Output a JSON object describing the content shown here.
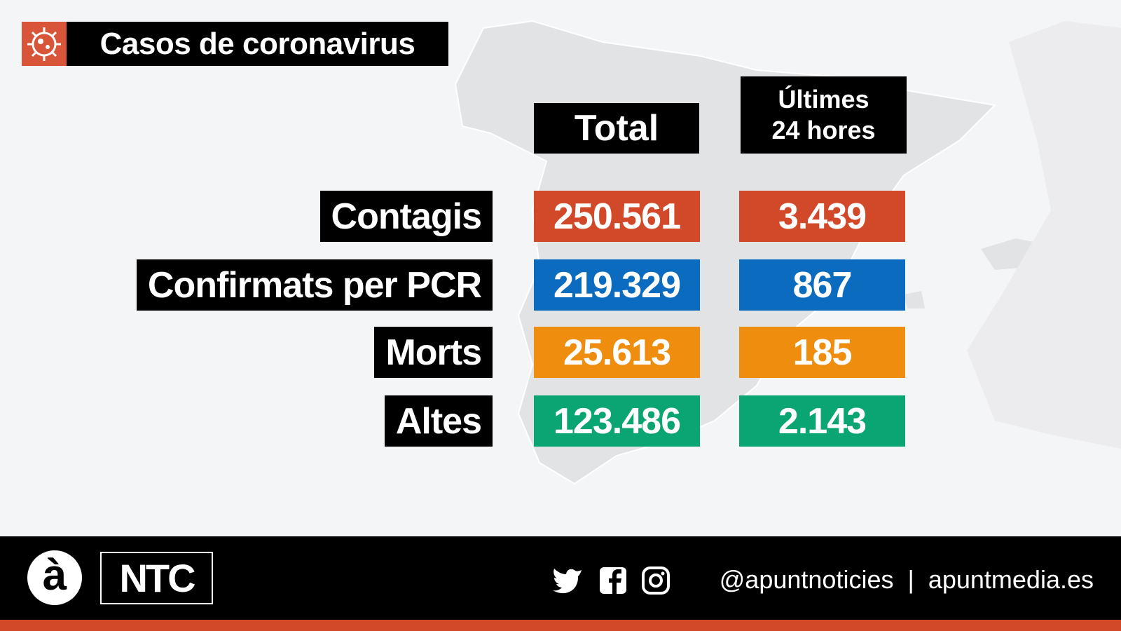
{
  "title": "Casos de coronavirus",
  "headers": {
    "total": "Total",
    "last24": [
      "Últimes",
      "24 hores"
    ]
  },
  "rows": [
    {
      "label": "Contagis",
      "total": "250.561",
      "last24": "3.439",
      "color": "#d2492a"
    },
    {
      "label": "Confirmats per PCR",
      "total": "219.329",
      "last24": "867",
      "color": "#0b6cbf"
    },
    {
      "label": "Morts",
      "total": "25.613",
      "last24": "185",
      "color": "#ee8d0e"
    },
    {
      "label": "Altes",
      "total": "123.486",
      "last24": "2.143",
      "color": "#0aa572"
    }
  ],
  "footer": {
    "logo": "à",
    "brand": "NTC",
    "handle": "@apuntnoticies",
    "separator": "|",
    "site": "apuntmedia.es"
  }
}
